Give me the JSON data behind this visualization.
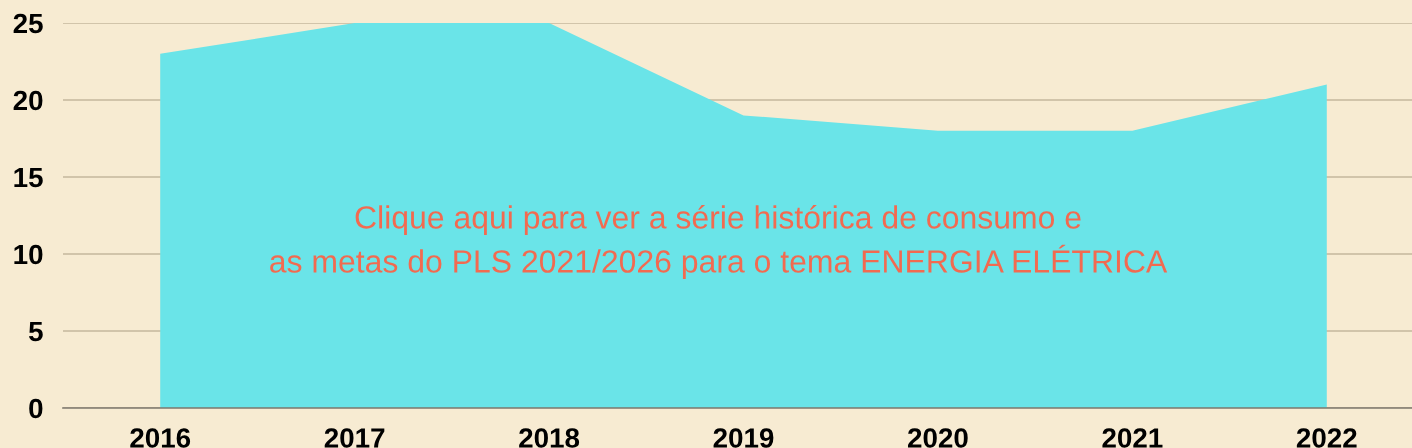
{
  "chart_data": {
    "type": "area",
    "categories": [
      "2016",
      "2017",
      "2018",
      "2019",
      "2020",
      "2021",
      "2022"
    ],
    "values": [
      23,
      25,
      25,
      19,
      18,
      18,
      21
    ],
    "color": "#6ae4e8",
    "ylim": [
      0,
      25
    ],
    "yticks": [
      0,
      5,
      10,
      15,
      20,
      25
    ],
    "grid": "y",
    "annotations": [
      "Clique aqui para ver a série histórica de consumo e\nas metas do PLS 2021/2026 para o tema ENERGIA ELÉTRICA"
    ]
  }
}
